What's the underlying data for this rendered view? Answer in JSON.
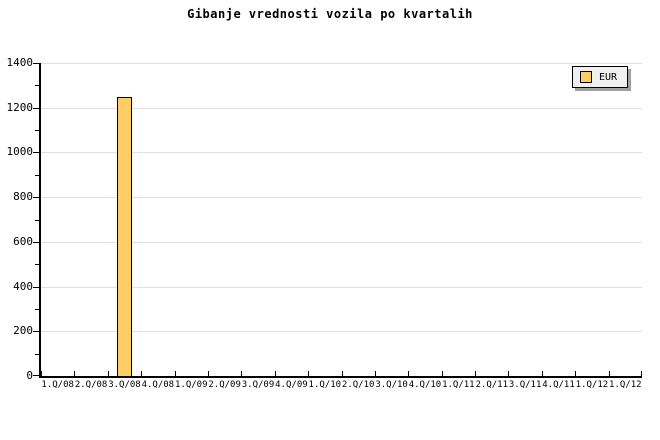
{
  "chart_data": {
    "type": "bar",
    "title": "Gibanje vrednosti vozila po kvartalih",
    "categories": [
      "1.Q/08",
      "2.Q/08",
      "3.Q/08",
      "4.Q/08",
      "1.Q/09",
      "2.Q/09",
      "3.Q/09",
      "4.Q/09",
      "1.Q/10",
      "2.Q/10",
      "3.Q/10",
      "4.Q/10",
      "1.Q/11",
      "2.Q/11",
      "3.Q/11",
      "4.Q/11",
      "1.Q/12",
      "1.Q/12"
    ],
    "series": [
      {
        "name": "EUR",
        "values": [
          null,
          null,
          1250,
          null,
          null,
          null,
          null,
          null,
          null,
          null,
          null,
          null,
          null,
          null,
          null,
          null,
          null,
          null
        ]
      }
    ],
    "xlabel": "",
    "ylabel": "",
    "ylim": [
      0,
      1400
    ],
    "y_major_step": 200,
    "y_minor_step": 100,
    "y_tick_labels": [
      "0",
      "200",
      "400",
      "600",
      "800",
      "1000",
      "1200",
      "1400"
    ],
    "grid": "horizontal-major",
    "legend": {
      "label": "EUR",
      "position": "top-right"
    },
    "colors": {
      "background": "#FFFFFF",
      "bar_fill": "#FFCC66",
      "bar_border": "#000000",
      "grid_line": "#E0E0E0",
      "axis": "#000000",
      "text": "#000000",
      "legend_bg": "#F0F0F0",
      "legend_border": "#000000",
      "legend_shadow": "#A0A0A0"
    }
  }
}
